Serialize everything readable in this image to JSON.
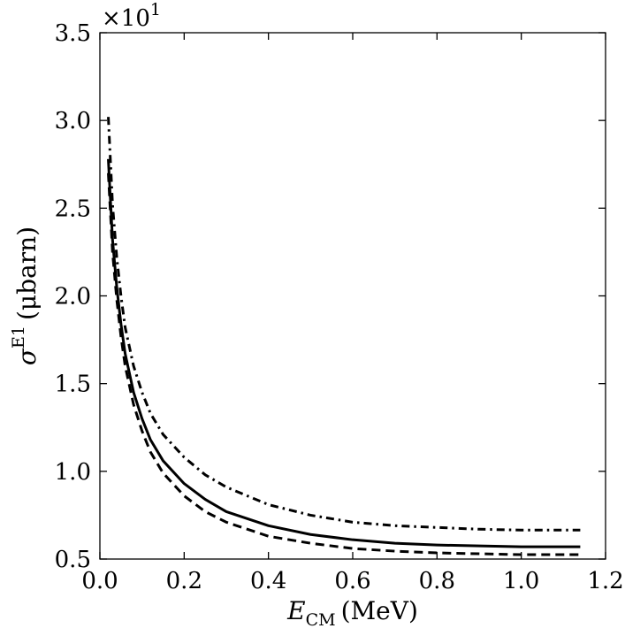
{
  "chart_data": {
    "type": "line",
    "title": "",
    "xlabel": {
      "main": "E",
      "sub": "CM",
      "unit": "(MeV)"
    },
    "ylabel": {
      "main": "σ",
      "sup": "E1",
      "unit": "(μbarn)"
    },
    "offset_text": {
      "base": "×10",
      "exponent": "1"
    },
    "xlim": [
      0.0,
      1.2
    ],
    "ylim": [
      0.5,
      3.5
    ],
    "xticks": [
      0.0,
      0.2,
      0.4,
      0.6,
      0.8,
      1.0,
      1.2
    ],
    "xtick_labels": [
      "0.0",
      "0.2",
      "0.4",
      "0.6",
      "0.8",
      "1.0",
      "1.2"
    ],
    "yticks": [
      0.5,
      1.0,
      1.5,
      2.0,
      2.5,
      3.0,
      3.5
    ],
    "ytick_labels": [
      "0.5",
      "1.0",
      "1.5",
      "2.0",
      "2.5",
      "3.0",
      "3.5"
    ],
    "grid": false,
    "legend": null,
    "series": [
      {
        "style": "solid",
        "color": "#000000",
        "x": [
          0.02,
          0.03,
          0.04,
          0.05,
          0.06,
          0.08,
          0.1,
          0.12,
          0.15,
          0.2,
          0.25,
          0.3,
          0.4,
          0.5,
          0.6,
          0.7,
          0.8,
          0.9,
          1.0,
          1.1,
          1.14
        ],
        "y": [
          2.78,
          2.32,
          2.05,
          1.84,
          1.67,
          1.45,
          1.3,
          1.18,
          1.06,
          0.93,
          0.84,
          0.77,
          0.69,
          0.64,
          0.61,
          0.59,
          0.58,
          0.575,
          0.57,
          0.57,
          0.57
        ]
      },
      {
        "style": "dashed",
        "color": "#000000",
        "x": [
          0.02,
          0.03,
          0.04,
          0.05,
          0.06,
          0.08,
          0.1,
          0.12,
          0.15,
          0.2,
          0.25,
          0.3,
          0.4,
          0.5,
          0.6,
          0.7,
          0.8,
          0.9,
          1.0,
          1.1,
          1.14
        ],
        "y": [
          2.7,
          2.25,
          1.98,
          1.77,
          1.6,
          1.38,
          1.23,
          1.11,
          0.99,
          0.86,
          0.77,
          0.71,
          0.63,
          0.59,
          0.56,
          0.545,
          0.535,
          0.53,
          0.525,
          0.525,
          0.525
        ]
      },
      {
        "style": "dashdot",
        "color": "#000000",
        "x": [
          0.02,
          0.03,
          0.04,
          0.05,
          0.06,
          0.08,
          0.1,
          0.12,
          0.15,
          0.2,
          0.25,
          0.3,
          0.4,
          0.5,
          0.6,
          0.7,
          0.8,
          0.9,
          1.0,
          1.1,
          1.14
        ],
        "y": [
          3.02,
          2.52,
          2.22,
          2.0,
          1.82,
          1.6,
          1.45,
          1.33,
          1.21,
          1.08,
          0.98,
          0.91,
          0.81,
          0.75,
          0.71,
          0.69,
          0.68,
          0.67,
          0.665,
          0.665,
          0.665
        ]
      }
    ]
  }
}
